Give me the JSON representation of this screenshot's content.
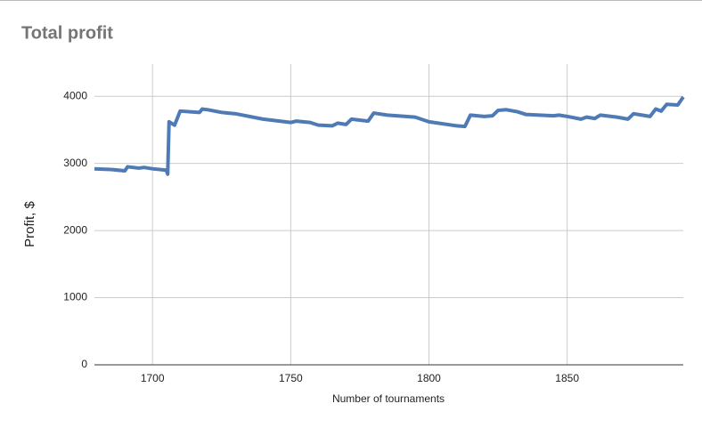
{
  "chart_data": {
    "type": "line",
    "title": "Total profit",
    "x_label": "Number of tournaments",
    "y_label": "Profit, $",
    "x": [
      1679,
      1685,
      1690,
      1691,
      1695,
      1697,
      1700,
      1705,
      1705.5,
      1706,
      1708,
      1710,
      1717,
      1718,
      1720,
      1725,
      1730,
      1740,
      1750,
      1752,
      1757,
      1760,
      1765,
      1767,
      1770,
      1772,
      1778,
      1780,
      1785,
      1795,
      1800,
      1810,
      1813,
      1815,
      1820,
      1823,
      1825,
      1828,
      1832,
      1835,
      1840,
      1845,
      1847,
      1850,
      1855,
      1857,
      1860,
      1862,
      1868,
      1872,
      1874,
      1880,
      1882,
      1884,
      1886,
      1890,
      1892
    ],
    "series": [
      {
        "name": "Total profit",
        "color": "#4e7ab5",
        "values": [
          2920,
          2910,
          2890,
          2950,
          2930,
          2940,
          2920,
          2900,
          2840,
          3620,
          3570,
          3780,
          3760,
          3810,
          3800,
          3760,
          3740,
          3660,
          3610,
          3630,
          3610,
          3570,
          3560,
          3600,
          3580,
          3660,
          3630,
          3750,
          3720,
          3690,
          3620,
          3560,
          3550,
          3720,
          3700,
          3710,
          3790,
          3800,
          3770,
          3730,
          3720,
          3710,
          3720,
          3700,
          3660,
          3690,
          3670,
          3720,
          3690,
          3660,
          3740,
          3700,
          3810,
          3780,
          3880,
          3870,
          3990
        ]
      }
    ],
    "xlim": [
      1679,
      1892
    ],
    "ylim": [
      0,
      4480
    ],
    "xticks": [
      1700,
      1750,
      1800,
      1850
    ],
    "yticks": [
      0,
      1000,
      2000,
      3000,
      4000
    ],
    "grid": true
  }
}
